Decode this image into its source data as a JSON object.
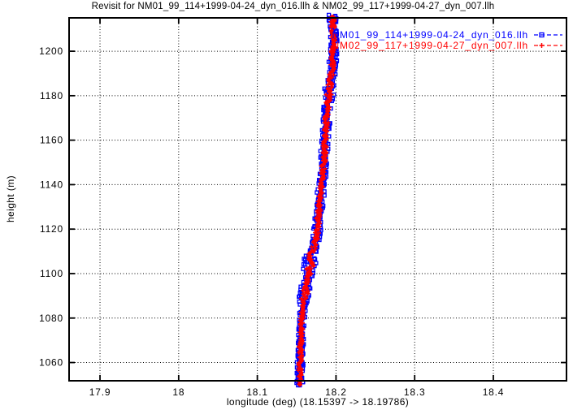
{
  "chart_data": {
    "type": "scatter",
    "title": "Revisit for NM01_99_114+1999-04-24_dyn_016.llh & NM02_99_117+1999-04-27_dyn_007.llh",
    "xlabel": "longitude (deg) (18.15397 -> 18.19786)",
    "ylabel": "height (m)",
    "xlim": [
      17.8607,
      18.493
    ],
    "ylim": [
      1051.8,
      1215.0
    ],
    "grid": true,
    "grid_style": "dotted-black",
    "axis_color": "#000000",
    "background": "#ffffff",
    "x_ticks": [
      {
        "value": 17.9,
        "label": "17.9"
      },
      {
        "value": 18.0,
        "label": "18"
      },
      {
        "value": 18.1,
        "label": "18.1"
      },
      {
        "value": 18.2,
        "label": "18.2"
      },
      {
        "value": 18.3,
        "label": "18.3"
      },
      {
        "value": 18.4,
        "label": "18.4"
      }
    ],
    "y_ticks": [
      {
        "value": 1060,
        "label": "1060"
      },
      {
        "value": 1080,
        "label": "1080"
      },
      {
        "value": 1100,
        "label": "1100"
      },
      {
        "value": 1120,
        "label": "1120"
      },
      {
        "value": 1140,
        "label": "1140"
      },
      {
        "value": 1160,
        "label": "1160"
      },
      {
        "value": 1180,
        "label": "1180"
      },
      {
        "value": 1200,
        "label": "1200"
      }
    ],
    "legend_position": "top-right-inside",
    "points_format": [
      "height_m",
      "longitude_deg",
      "scatter_halfwidth_deg"
    ],
    "longitude_range": {
      "start": 18.15397,
      "end": 18.19786
    },
    "series": [
      {
        "name": "NM01_99_114+1999-04-24_dyn_016.llh",
        "color": "#0000ff",
        "marker": "open-square",
        "linestyle": "dashed",
        "points": [
          [
            1050.0,
            18.154,
            0.0042
          ],
          [
            1060.0,
            18.1545,
            0.0042
          ],
          [
            1068.0,
            18.1551,
            0.0042
          ],
          [
            1075.0,
            18.1559,
            0.0042
          ],
          [
            1082.0,
            18.1572,
            0.0042
          ],
          [
            1086.0,
            18.1583,
            0.0046
          ],
          [
            1089.5,
            18.1601,
            0.0078
          ],
          [
            1093.0,
            18.1617,
            0.0082
          ],
          [
            1096.5,
            18.1638,
            0.0052
          ],
          [
            1100.0,
            18.1655,
            0.005
          ],
          [
            1103.0,
            18.1665,
            0.009
          ],
          [
            1106.5,
            18.1671,
            0.0096
          ],
          [
            1109.5,
            18.1693,
            0.0062
          ],
          [
            1113.5,
            18.1737,
            0.005
          ],
          [
            1120.0,
            18.1763,
            0.005
          ],
          [
            1128.0,
            18.1781,
            0.005
          ],
          [
            1136.0,
            18.1807,
            0.005
          ],
          [
            1144.0,
            18.183,
            0.005
          ],
          [
            1152.0,
            18.1846,
            0.005
          ],
          [
            1160.0,
            18.1862,
            0.005
          ],
          [
            1168.0,
            18.1879,
            0.005
          ],
          [
            1175.5,
            18.1891,
            0.005
          ],
          [
            1180.5,
            18.1907,
            0.0072
          ],
          [
            1185.5,
            18.1926,
            0.0062
          ],
          [
            1191.0,
            18.1946,
            0.0052
          ],
          [
            1197.0,
            18.1961,
            0.0052
          ],
          [
            1206.0,
            18.1967,
            0.0052
          ],
          [
            1215.5,
            18.1958,
            0.0052
          ]
        ]
      },
      {
        "name": "NM02_99_117+1999-04-27_dyn_007.llh",
        "color": "#ff0000",
        "marker": "plus",
        "linestyle": "dashed",
        "points": [
          [
            1050.0,
            18.154,
            0.0042
          ],
          [
            1060.0,
            18.1545,
            0.0042
          ],
          [
            1068.0,
            18.1551,
            0.0042
          ],
          [
            1075.0,
            18.1559,
            0.0042
          ],
          [
            1082.0,
            18.1572,
            0.0042
          ],
          [
            1086.0,
            18.1583,
            0.0046
          ],
          [
            1089.5,
            18.1601,
            0.0078
          ],
          [
            1093.0,
            18.1617,
            0.0082
          ],
          [
            1096.5,
            18.1638,
            0.0052
          ],
          [
            1100.0,
            18.1655,
            0.005
          ],
          [
            1103.0,
            18.1665,
            0.009
          ],
          [
            1106.5,
            18.1671,
            0.0096
          ],
          [
            1109.5,
            18.1693,
            0.0062
          ],
          [
            1113.5,
            18.1737,
            0.005
          ],
          [
            1120.0,
            18.1763,
            0.005
          ],
          [
            1128.0,
            18.1781,
            0.005
          ],
          [
            1136.0,
            18.1807,
            0.005
          ],
          [
            1144.0,
            18.183,
            0.005
          ],
          [
            1152.0,
            18.1846,
            0.005
          ],
          [
            1160.0,
            18.1862,
            0.005
          ],
          [
            1168.0,
            18.1879,
            0.005
          ],
          [
            1175.5,
            18.1891,
            0.005
          ],
          [
            1180.5,
            18.1907,
            0.0072
          ],
          [
            1185.5,
            18.1926,
            0.0062
          ],
          [
            1191.0,
            18.1946,
            0.0052
          ],
          [
            1197.0,
            18.1961,
            0.0052
          ],
          [
            1206.0,
            18.1967,
            0.0052
          ],
          [
            1215.5,
            18.1958,
            0.0052
          ]
        ]
      }
    ]
  }
}
